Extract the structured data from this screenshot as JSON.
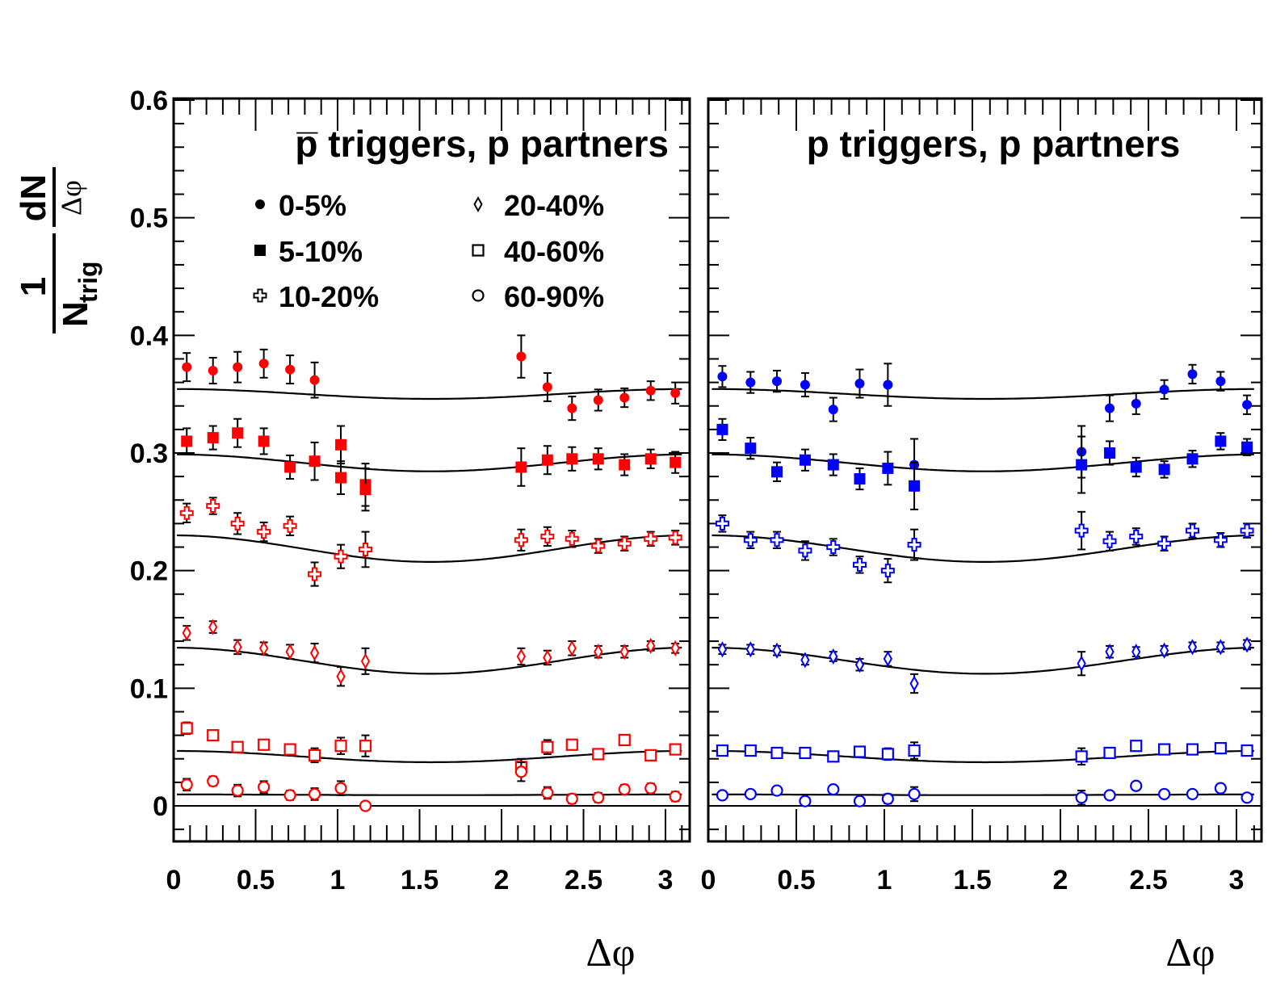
{
  "chart_data": [
    {
      "type": "scatter",
      "panel": "left",
      "title_prefix": "p̅",
      "title_rest": " triggers, p partners",
      "xlabel": "Δφ",
      "ylabel_num": "1",
      "ylabel_den": "N",
      "ylabel_den_sub": "trig",
      "ylabel_frac_num": "dN",
      "ylabel_frac_den": "Δφ",
      "xlim": [
        0,
        3.14
      ],
      "ylim": [
        -0.03,
        0.6
      ],
      "xticks": [
        "0",
        "0.5",
        "1",
        "1.5",
        "2",
        "2.5",
        "3"
      ],
      "yticks": [
        "0",
        "0.1",
        "0.2",
        "0.3",
        "0.4",
        "0.5",
        "0.6"
      ],
      "color": "#ff0000",
      "legend": [
        {
          "label": "0-5%",
          "marker": "filled-circle"
        },
        {
          "label": "5-10%",
          "marker": "filled-square"
        },
        {
          "label": "10-20%",
          "marker": "open-cross"
        },
        {
          "label": "20-40%",
          "marker": "open-diamond"
        },
        {
          "label": "40-60%",
          "marker": "open-square"
        },
        {
          "label": "60-90%",
          "marker": "open-circle"
        }
      ],
      "series": [
        {
          "name": "0-5%",
          "marker": "filled-circle",
          "x": [
            0.08,
            0.24,
            0.39,
            0.55,
            0.71,
            0.86,
            2.12,
            2.28,
            2.43,
            2.59,
            2.75,
            2.91,
            3.06
          ],
          "y": [
            0.373,
            0.37,
            0.373,
            0.376,
            0.371,
            0.362,
            0.382,
            0.356,
            0.338,
            0.345,
            0.347,
            0.353,
            0.351
          ],
          "err": [
            0.012,
            0.011,
            0.013,
            0.012,
            0.012,
            0.015,
            0.018,
            0.012,
            0.01,
            0.009,
            0.008,
            0.008,
            0.009
          ],
          "fit": {
            "base": 0.3502,
            "amp": 0.0042
          }
        },
        {
          "name": "5-10%",
          "marker": "filled-square",
          "x": [
            0.08,
            0.24,
            0.39,
            0.55,
            0.71,
            0.86,
            1.02,
            1.02,
            1.17,
            1.17,
            2.12,
            2.28,
            2.43,
            2.59,
            2.75,
            2.91,
            3.06
          ],
          "y": [
            0.31,
            0.313,
            0.317,
            0.31,
            0.288,
            0.293,
            0.307,
            0.279,
            0.273,
            0.269,
            0.288,
            0.294,
            0.295,
            0.295,
            0.29,
            0.295,
            0.292
          ],
          "err": [
            0.011,
            0.01,
            0.012,
            0.011,
            0.01,
            0.016,
            0.016,
            0.014,
            0.018,
            0.018,
            0.016,
            0.012,
            0.01,
            0.009,
            0.009,
            0.008,
            0.009
          ],
          "fit": {
            "base": 0.2916,
            "amp": 0.0072
          }
        },
        {
          "name": "10-20%",
          "marker": "open-cross",
          "x": [
            0.08,
            0.24,
            0.39,
            0.55,
            0.71,
            0.86,
            1.02,
            1.17,
            2.12,
            2.28,
            2.43,
            2.59,
            2.75,
            2.91,
            3.06
          ],
          "y": [
            0.249,
            0.255,
            0.24,
            0.233,
            0.238,
            0.197,
            0.212,
            0.218,
            0.226,
            0.229,
            0.227,
            0.221,
            0.223,
            0.227,
            0.228
          ],
          "err": [
            0.008,
            0.007,
            0.009,
            0.008,
            0.008,
            0.01,
            0.01,
            0.015,
            0.009,
            0.008,
            0.007,
            0.006,
            0.006,
            0.006,
            0.006
          ],
          "fit": {
            "base": 0.2187,
            "amp": 0.0113
          }
        },
        {
          "name": "20-40%",
          "marker": "open-diamond",
          "x": [
            0.08,
            0.24,
            0.39,
            0.55,
            0.71,
            0.86,
            1.02,
            1.17,
            2.12,
            2.28,
            2.43,
            2.59,
            2.75,
            2.91,
            3.06
          ],
          "y": [
            0.147,
            0.152,
            0.135,
            0.134,
            0.131,
            0.13,
            0.11,
            0.123,
            0.127,
            0.126,
            0.134,
            0.131,
            0.131,
            0.136,
            0.134
          ],
          "err": [
            0.006,
            0.005,
            0.006,
            0.005,
            0.006,
            0.008,
            0.008,
            0.011,
            0.007,
            0.006,
            0.006,
            0.005,
            0.005,
            0.004,
            0.004
          ],
          "fit": {
            "base": 0.1234,
            "amp": 0.0111
          }
        },
        {
          "name": "40-60%",
          "marker": "open-square",
          "x": [
            0.08,
            0.24,
            0.39,
            0.55,
            0.71,
            0.86,
            1.02,
            1.17,
            2.12,
            2.28,
            2.43,
            2.59,
            2.75,
            2.91,
            3.06
          ],
          "y": [
            0.066,
            0.06,
            0.05,
            0.052,
            0.048,
            0.043,
            0.051,
            0.051,
            0.033,
            0.05,
            0.052,
            0.044,
            0.056,
            0.043,
            0.048
          ],
          "err": [
            0.005,
            0.004,
            0.004,
            0.004,
            0.004,
            0.006,
            0.007,
            0.009,
            0.007,
            0.006,
            0.004,
            0.004,
            0.004,
            0.004,
            0.004
          ],
          "fit": {
            "base": 0.0419,
            "amp": 0.0048
          }
        },
        {
          "name": "60-90%",
          "marker": "open-circle",
          "x": [
            0.08,
            0.24,
            0.39,
            0.55,
            0.71,
            0.86,
            1.02,
            1.17,
            2.12,
            2.28,
            2.43,
            2.59,
            2.75,
            2.91,
            3.06
          ],
          "y": [
            0.018,
            0.021,
            0.013,
            0.016,
            0.009,
            0.01,
            0.015,
            0.0,
            0.029,
            0.011,
            0.006,
            0.007,
            0.014,
            0.015,
            0.008
          ],
          "err": [
            0.005,
            0.004,
            0.005,
            0.005,
            0.004,
            0.005,
            0.006,
            0.002,
            0.008,
            0.005,
            0.004,
            0.004,
            0.004,
            0.004,
            0.004
          ],
          "fit": {
            "base": 0.0094,
            "amp": 0.0003
          }
        }
      ]
    },
    {
      "type": "scatter",
      "panel": "right",
      "title_prefix": "",
      "title_rest": "p triggers, p partners",
      "xlabel": "Δφ",
      "xlim": [
        0,
        3.14
      ],
      "ylim": [
        -0.03,
        0.6
      ],
      "xticks": [
        "0",
        "0.5",
        "1",
        "1.5",
        "2",
        "2.5",
        "3"
      ],
      "color": "#0000ff",
      "series": [
        {
          "name": "0-5%",
          "marker": "filled-circle",
          "x": [
            0.08,
            0.24,
            0.39,
            0.55,
            0.71,
            0.86,
            1.02,
            1.17,
            2.12,
            2.28,
            2.43,
            2.59,
            2.75,
            2.91,
            3.06
          ],
          "y": [
            0.365,
            0.36,
            0.361,
            0.358,
            0.337,
            0.359,
            0.358,
            0.29,
            0.301,
            0.338,
            0.342,
            0.354,
            0.367,
            0.361,
            0.341
          ],
          "err": [
            0.009,
            0.009,
            0.009,
            0.01,
            0.01,
            0.012,
            0.018,
            0.022,
            0.022,
            0.011,
            0.009,
            0.008,
            0.008,
            0.008,
            0.008
          ],
          "fit": {
            "base": 0.3502,
            "amp": 0.0042
          }
        },
        {
          "name": "5-10%",
          "marker": "filled-square",
          "x": [
            0.08,
            0.24,
            0.39,
            0.55,
            0.71,
            0.86,
            1.02,
            1.17,
            2.12,
            2.28,
            2.43,
            2.59,
            2.75,
            2.91,
            3.06
          ],
          "y": [
            0.32,
            0.304,
            0.284,
            0.294,
            0.29,
            0.278,
            0.287,
            0.272,
            0.29,
            0.3,
            0.288,
            0.286,
            0.295,
            0.31,
            0.305
          ],
          "err": [
            0.009,
            0.009,
            0.008,
            0.009,
            0.009,
            0.009,
            0.014,
            0.02,
            0.024,
            0.01,
            0.008,
            0.007,
            0.007,
            0.007,
            0.007
          ],
          "fit": {
            "base": 0.2916,
            "amp": 0.0072
          }
        },
        {
          "name": "10-20%",
          "marker": "open-cross",
          "x": [
            0.08,
            0.24,
            0.39,
            0.55,
            0.71,
            0.86,
            1.02,
            1.17,
            2.12,
            2.28,
            2.43,
            2.59,
            2.75,
            2.91,
            3.06
          ],
          "y": [
            0.24,
            0.226,
            0.226,
            0.217,
            0.22,
            0.205,
            0.2,
            0.222,
            0.234,
            0.225,
            0.229,
            0.223,
            0.234,
            0.226,
            0.234
          ],
          "err": [
            0.007,
            0.007,
            0.007,
            0.008,
            0.007,
            0.007,
            0.01,
            0.013,
            0.016,
            0.008,
            0.007,
            0.006,
            0.006,
            0.006,
            0.006
          ],
          "fit": {
            "base": 0.2187,
            "amp": 0.0113
          }
        },
        {
          "name": "20-40%",
          "marker": "open-diamond",
          "x": [
            0.08,
            0.24,
            0.39,
            0.55,
            0.71,
            0.86,
            1.02,
            1.17,
            2.12,
            2.28,
            2.43,
            2.59,
            2.75,
            2.91,
            3.06
          ],
          "y": [
            0.133,
            0.133,
            0.132,
            0.124,
            0.127,
            0.12,
            0.125,
            0.104,
            0.121,
            0.131,
            0.131,
            0.132,
            0.135,
            0.135,
            0.137
          ],
          "err": [
            0.004,
            0.004,
            0.004,
            0.004,
            0.004,
            0.005,
            0.006,
            0.008,
            0.01,
            0.005,
            0.004,
            0.004,
            0.004,
            0.004,
            0.004
          ],
          "fit": {
            "base": 0.1234,
            "amp": 0.0111
          }
        },
        {
          "name": "40-60%",
          "marker": "open-square",
          "x": [
            0.08,
            0.24,
            0.39,
            0.55,
            0.71,
            0.86,
            1.02,
            1.17,
            2.12,
            2.28,
            2.43,
            2.59,
            2.75,
            2.91,
            3.06
          ],
          "y": [
            0.047,
            0.047,
            0.045,
            0.045,
            0.042,
            0.046,
            0.044,
            0.047,
            0.042,
            0.045,
            0.051,
            0.048,
            0.048,
            0.049,
            0.047
          ],
          "err": [
            0.003,
            0.003,
            0.003,
            0.003,
            0.003,
            0.003,
            0.005,
            0.007,
            0.007,
            0.003,
            0.003,
            0.003,
            0.003,
            0.003,
            0.003
          ],
          "fit": {
            "base": 0.0419,
            "amp": 0.0048
          }
        },
        {
          "name": "60-90%",
          "marker": "open-circle",
          "x": [
            0.08,
            0.24,
            0.39,
            0.55,
            0.71,
            0.86,
            1.02,
            1.17,
            2.12,
            2.28,
            2.43,
            2.59,
            2.75,
            2.91,
            3.06
          ],
          "y": [
            0.009,
            0.01,
            0.013,
            0.004,
            0.014,
            0.004,
            0.006,
            0.01,
            0.007,
            0.009,
            0.017,
            0.01,
            0.01,
            0.015,
            0.007
          ],
          "err": [
            0.003,
            0.003,
            0.003,
            0.003,
            0.003,
            0.003,
            0.004,
            0.006,
            0.006,
            0.003,
            0.003,
            0.003,
            0.003,
            0.003,
            0.003
          ],
          "fit": {
            "base": 0.0094,
            "amp": 0.0003
          }
        }
      ]
    }
  ]
}
